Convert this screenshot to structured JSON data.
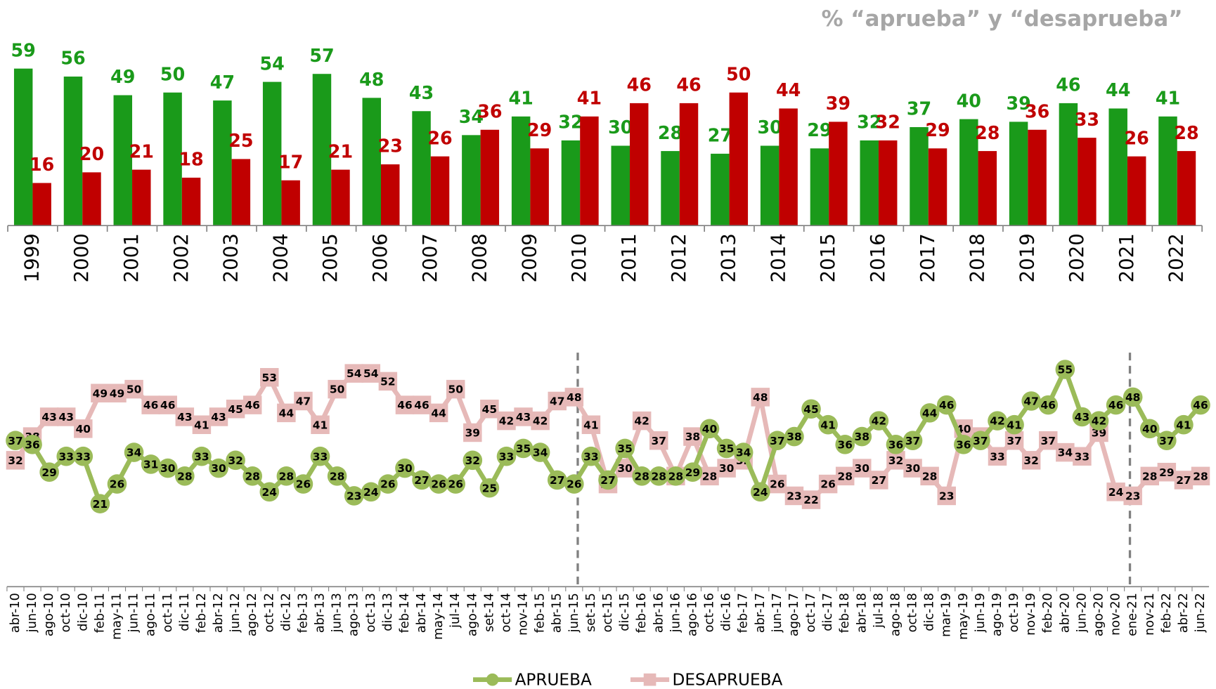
{
  "chart_data": [
    {
      "type": "bar",
      "title": "% “aprueba” y “desaprueba”",
      "categories": [
        "1999",
        "2000",
        "2001",
        "2002",
        "2003",
        "2004",
        "2005",
        "2006",
        "2007",
        "2008",
        "2009",
        "2010",
        "2011",
        "2012",
        "2013",
        "2014",
        "2015",
        "2016",
        "2017",
        "2018",
        "2019",
        "2020",
        "2021",
        "2022"
      ],
      "series": [
        {
          "color": "#1a9a1a",
          "values": [
            59,
            56,
            49,
            50,
            47,
            54,
            57,
            48,
            43,
            34,
            41,
            32,
            30,
            28,
            27,
            30,
            29,
            32,
            37,
            40,
            39,
            46,
            44,
            41
          ]
        },
        {
          "color": "#c00000",
          "values": [
            16,
            20,
            21,
            18,
            25,
            17,
            21,
            23,
            26,
            36,
            29,
            41,
            46,
            46,
            50,
            44,
            39,
            32,
            29,
            28,
            36,
            33,
            26,
            28
          ]
        }
      ],
      "ylim": [
        0,
        60
      ]
    },
    {
      "type": "line",
      "categories": [
        "abr-10",
        "jun-10",
        "ago-10",
        "oct-10",
        "dic-10",
        "feb-11",
        "may-11",
        "jun-11",
        "ago-11",
        "oct-11",
        "dic-11",
        "feb-12",
        "abr-12",
        "jun-12",
        "ago-12",
        "oct-12",
        "dic-12",
        "feb-13",
        "abr-13",
        "jun-13",
        "ago-13",
        "oct-13",
        "dic-13",
        "feb-14",
        "abr-14",
        "may-14",
        "jul-14",
        "ago-14",
        "set-14",
        "oct-14",
        "nov-14",
        "feb-15",
        "abr-15",
        "jun-15",
        "set-15",
        "oct-15",
        "dic-15",
        "feb-16",
        "abr-16",
        "jun-16",
        "ago-16",
        "oct-16",
        "dic-16",
        "feb-17",
        "abr-17",
        "jun-17",
        "ago-17",
        "oct-17",
        "dic-17",
        "feb-18",
        "abr-18",
        "jul-18",
        "ago-18",
        "oct-18",
        "dic-18",
        "mar-19",
        "may-19",
        "jun-19",
        "ago-19",
        "oct-19",
        "nov-19",
        "feb-20",
        "abr-20",
        "jun-20",
        "ago-20",
        "nov-20",
        "ene-21",
        "nov-21",
        "feb-22",
        "abr-22",
        "jun-22"
      ],
      "series": [
        {
          "name": "APRUEBA",
          "color": "#9bbb59",
          "marker": "circle",
          "values": [
            37,
            36,
            29,
            33,
            33,
            21,
            26,
            34,
            31,
            30,
            28,
            33,
            30,
            32,
            28,
            24,
            28,
            26,
            33,
            28,
            23,
            24,
            26,
            30,
            27,
            26,
            26,
            32,
            25,
            33,
            35,
            34,
            27,
            26,
            33,
            27,
            35,
            28,
            28,
            28,
            29,
            40,
            35,
            34,
            24,
            37,
            38,
            45,
            41,
            36,
            38,
            42,
            36,
            37,
            44,
            46,
            36,
            37,
            42,
            41,
            47,
            46,
            55,
            43,
            42,
            46,
            48,
            40,
            37,
            41,
            46
          ]
        },
        {
          "name": "DESAPRUEBA",
          "color": "#e6b9b8",
          "marker": "square",
          "values": [
            32,
            38,
            43,
            43,
            40,
            49,
            49,
            50,
            46,
            46,
            43,
            41,
            43,
            45,
            46,
            53,
            44,
            47,
            41,
            50,
            54,
            54,
            52,
            46,
            46,
            44,
            50,
            39,
            45,
            42,
            43,
            42,
            47,
            48,
            41,
            26,
            30,
            42,
            37,
            28,
            38,
            28,
            30,
            32,
            48,
            26,
            23,
            22,
            26,
            28,
            30,
            27,
            32,
            30,
            28,
            23,
            40,
            38,
            33,
            37,
            32,
            37,
            34,
            33,
            39,
            24,
            23,
            28,
            29,
            27,
            28
          ]
        }
      ],
      "ylim": [
        0,
        62
      ],
      "legend": "bottom"
    }
  ]
}
